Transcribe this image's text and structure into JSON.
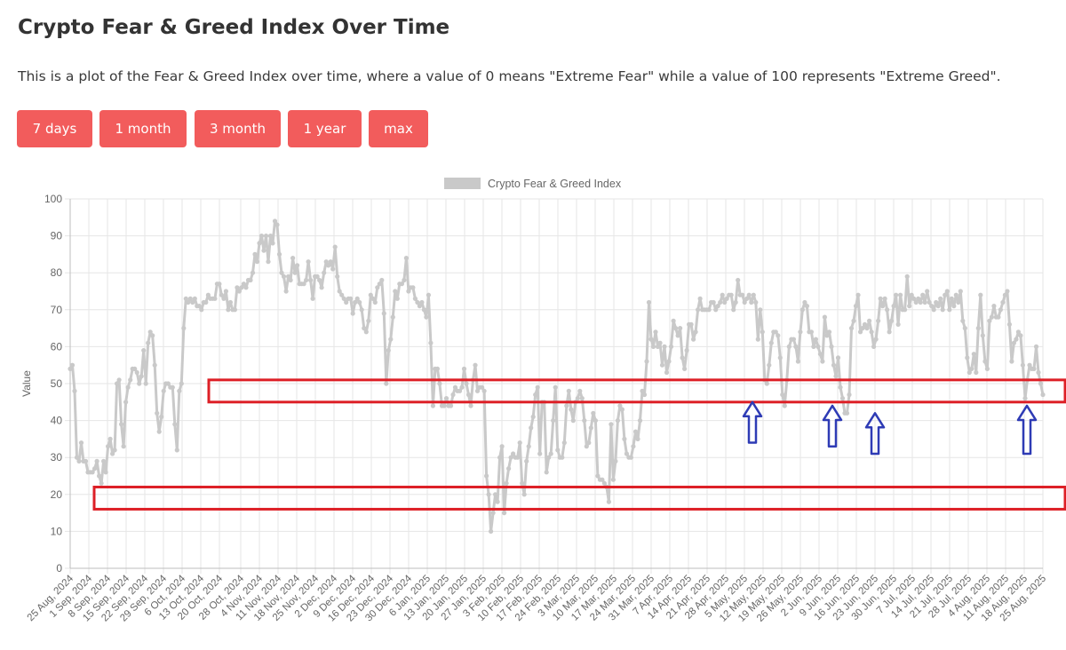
{
  "header": {
    "title": "Crypto Fear & Greed Index Over Time",
    "description": "This is a plot of the Fear & Greed Index over time, where a value of 0 means \"Extreme Fear\" while a value of 100 represents \"Extreme Greed\"."
  },
  "range_buttons": [
    "7 days",
    "1 month",
    "3 month",
    "1 year",
    "max"
  ],
  "colors": {
    "button": "#f25c5c",
    "series": "#c9c9c9",
    "highlight_box": "#dd1f26",
    "arrow": "#2e3bb5"
  },
  "chart_data": {
    "type": "line",
    "legend": {
      "label": "Crypto Fear & Greed Index",
      "position": "top"
    },
    "ylabel": "Value",
    "xlabel": "",
    "ylim": [
      0,
      100
    ],
    "yticks": [
      0,
      10,
      20,
      30,
      40,
      50,
      60,
      70,
      80,
      90,
      100
    ],
    "grid": true,
    "x_start": "25 Aug, 2024",
    "x_end": "25 Aug, 2025",
    "xtick_labels": [
      "25 Aug, 2024",
      "1 Sep, 2024",
      "8 Sep, 2024",
      "15 Sep, 2024",
      "22 Sep, 2024",
      "29 Sep, 2024",
      "6 Oct, 2024",
      "13 Oct, 2024",
      "20 Oct, 2024",
      "28 Oct, 2024",
      "4 Nov, 2024",
      "11 Nov, 2024",
      "18 Nov, 2024",
      "25 Nov, 2024",
      "2 Dec, 2024",
      "9 Dec, 2024",
      "16 Dec, 2024",
      "23 Dec, 2024",
      "30 Dec, 2024",
      "6 Jan, 2025",
      "13 Jan, 2025",
      "20 Jan, 2025",
      "27 Jan, 2025",
      "3 Feb, 2025",
      "10 Feb, 2025",
      "17 Feb, 2025",
      "24 Feb, 2025",
      "3 Mar, 2025",
      "10 Mar, 2025",
      "17 Mar, 2025",
      "24 Mar, 2025",
      "31 Mar, 2025",
      "7 Apr, 2025",
      "14 Apr, 2025",
      "21 Apr, 2025",
      "28 Apr, 2025",
      "5 May, 2025",
      "12 May, 2025",
      "19 May, 2025",
      "26 May, 2025",
      "2 Jun, 2025",
      "9 Jun, 2025",
      "16 Jun, 2025",
      "23 Jun, 2025",
      "30 Jun, 2025",
      "7 Jul, 2025",
      "14 Jul, 2025",
      "21 Jul, 2025",
      "28 Jul, 2025",
      "4 Aug, 2025",
      "11 Aug, 2025",
      "18 Aug, 2025",
      "25 Aug, 2025"
    ],
    "series": [
      {
        "name": "Crypto Fear & Greed Index",
        "values": [
          54,
          55,
          48,
          30,
          29,
          34,
          29,
          29,
          26,
          26,
          26,
          27,
          29,
          25,
          23,
          29,
          26,
          33,
          35,
          31,
          32,
          50,
          51,
          39,
          33,
          45,
          49,
          51,
          54,
          54,
          53,
          50,
          52,
          59,
          50,
          61,
          64,
          63,
          55,
          42,
          37,
          41,
          48,
          50,
          50,
          49,
          49,
          39,
          32,
          48,
          50,
          65,
          73,
          72,
          73,
          72,
          73,
          71,
          71,
          70,
          72,
          72,
          74,
          73,
          73,
          73,
          77,
          77,
          74,
          73,
          75,
          70,
          72,
          70,
          70,
          76,
          75,
          76,
          77,
          76,
          78,
          78,
          80,
          85,
          83,
          88,
          90,
          86,
          90,
          83,
          90,
          88,
          94,
          93,
          85,
          80,
          79,
          75,
          79,
          78,
          84,
          80,
          82,
          77,
          77,
          77,
          78,
          83,
          78,
          73,
          79,
          79,
          78,
          76,
          80,
          83,
          82,
          83,
          81,
          87,
          79,
          75,
          74,
          73,
          72,
          73,
          73,
          69,
          72,
          73,
          72,
          70,
          65,
          64,
          67,
          74,
          73,
          72,
          76,
          77,
          78,
          69,
          50,
          59,
          62,
          68,
          75,
          73,
          77,
          77,
          78,
          84,
          75,
          76,
          76,
          73,
          72,
          71,
          72,
          70,
          68,
          74,
          61,
          44,
          54,
          54,
          50,
          44,
          44,
          46,
          44,
          44,
          47,
          49,
          48,
          48,
          49,
          54,
          50,
          47,
          44,
          51,
          55,
          48,
          49,
          49,
          48,
          25,
          20,
          10,
          15,
          20,
          18,
          30,
          33,
          15,
          23,
          27,
          30,
          31,
          30,
          30,
          34,
          23,
          20,
          29,
          33,
          38,
          41,
          47,
          49,
          31,
          45,
          45,
          26,
          30,
          31,
          40,
          49,
          32,
          30,
          30,
          34,
          44,
          48,
          43,
          40,
          45,
          46,
          48,
          46,
          40,
          33,
          34,
          38,
          42,
          40,
          25,
          24,
          24,
          23,
          22,
          18,
          39,
          24,
          29,
          40,
          44,
          43,
          35,
          31,
          30,
          30,
          33,
          37,
          35,
          40,
          48,
          47,
          56,
          72,
          62,
          60,
          64,
          60,
          61,
          55,
          60,
          53,
          56,
          60,
          67,
          65,
          63,
          65,
          57,
          54,
          59,
          66,
          66,
          62,
          64,
          70,
          73,
          70,
          70,
          70,
          70,
          72,
          72,
          70,
          71,
          72,
          74,
          72,
          73,
          74,
          74,
          70,
          72,
          78,
          74,
          74,
          72,
          73,
          74,
          72,
          74,
          72,
          62,
          70,
          64,
          51,
          50,
          55,
          61,
          64,
          64,
          63,
          57,
          47,
          44,
          51,
          60,
          62,
          62,
          60,
          56,
          64,
          70,
          72,
          71,
          64,
          64,
          60,
          62,
          60,
          58,
          56,
          68,
          63,
          64,
          60,
          55,
          52,
          57,
          49,
          46,
          42,
          42,
          47,
          65,
          67,
          71,
          74,
          64,
          65,
          66,
          65,
          67,
          64,
          60,
          62,
          67,
          73,
          71,
          73,
          70,
          64,
          67,
          71,
          74,
          66,
          74,
          70,
          70,
          79,
          71,
          74,
          73,
          72,
          73,
          72,
          74,
          72,
          75,
          72,
          71,
          70,
          72,
          71,
          73,
          70,
          74,
          75,
          70,
          73,
          71,
          74,
          72,
          75,
          67,
          65,
          57,
          53,
          54,
          58,
          53,
          65,
          74,
          63,
          56,
          54,
          67,
          68,
          71,
          68,
          68,
          70,
          72,
          74,
          75,
          66,
          56,
          61,
          62,
          64,
          63,
          55,
          46,
          51,
          55,
          54,
          54,
          60,
          53,
          50,
          47
        ]
      }
    ],
    "annotations": {
      "boxes": [
        {
          "y_low": 45,
          "y_high": 51,
          "x_from": "16 Oct, 2024",
          "x_to": "25 Aug, 2025"
        },
        {
          "y_low": 16,
          "y_high": 22,
          "x_from": "3 Sep, 2024",
          "x_to": "25 Aug, 2025"
        }
      ],
      "arrows": [
        {
          "x": "8 May, 2025",
          "y_tip": 45,
          "y_tail": 34
        },
        {
          "x": "7 Jun, 2025",
          "y_tip": 44,
          "y_tail": 33
        },
        {
          "x": "23 Jun, 2025",
          "y_tip": 42,
          "y_tail": 31
        },
        {
          "x": "19 Aug, 2025",
          "y_tip": 44,
          "y_tail": 31
        }
      ]
    }
  }
}
